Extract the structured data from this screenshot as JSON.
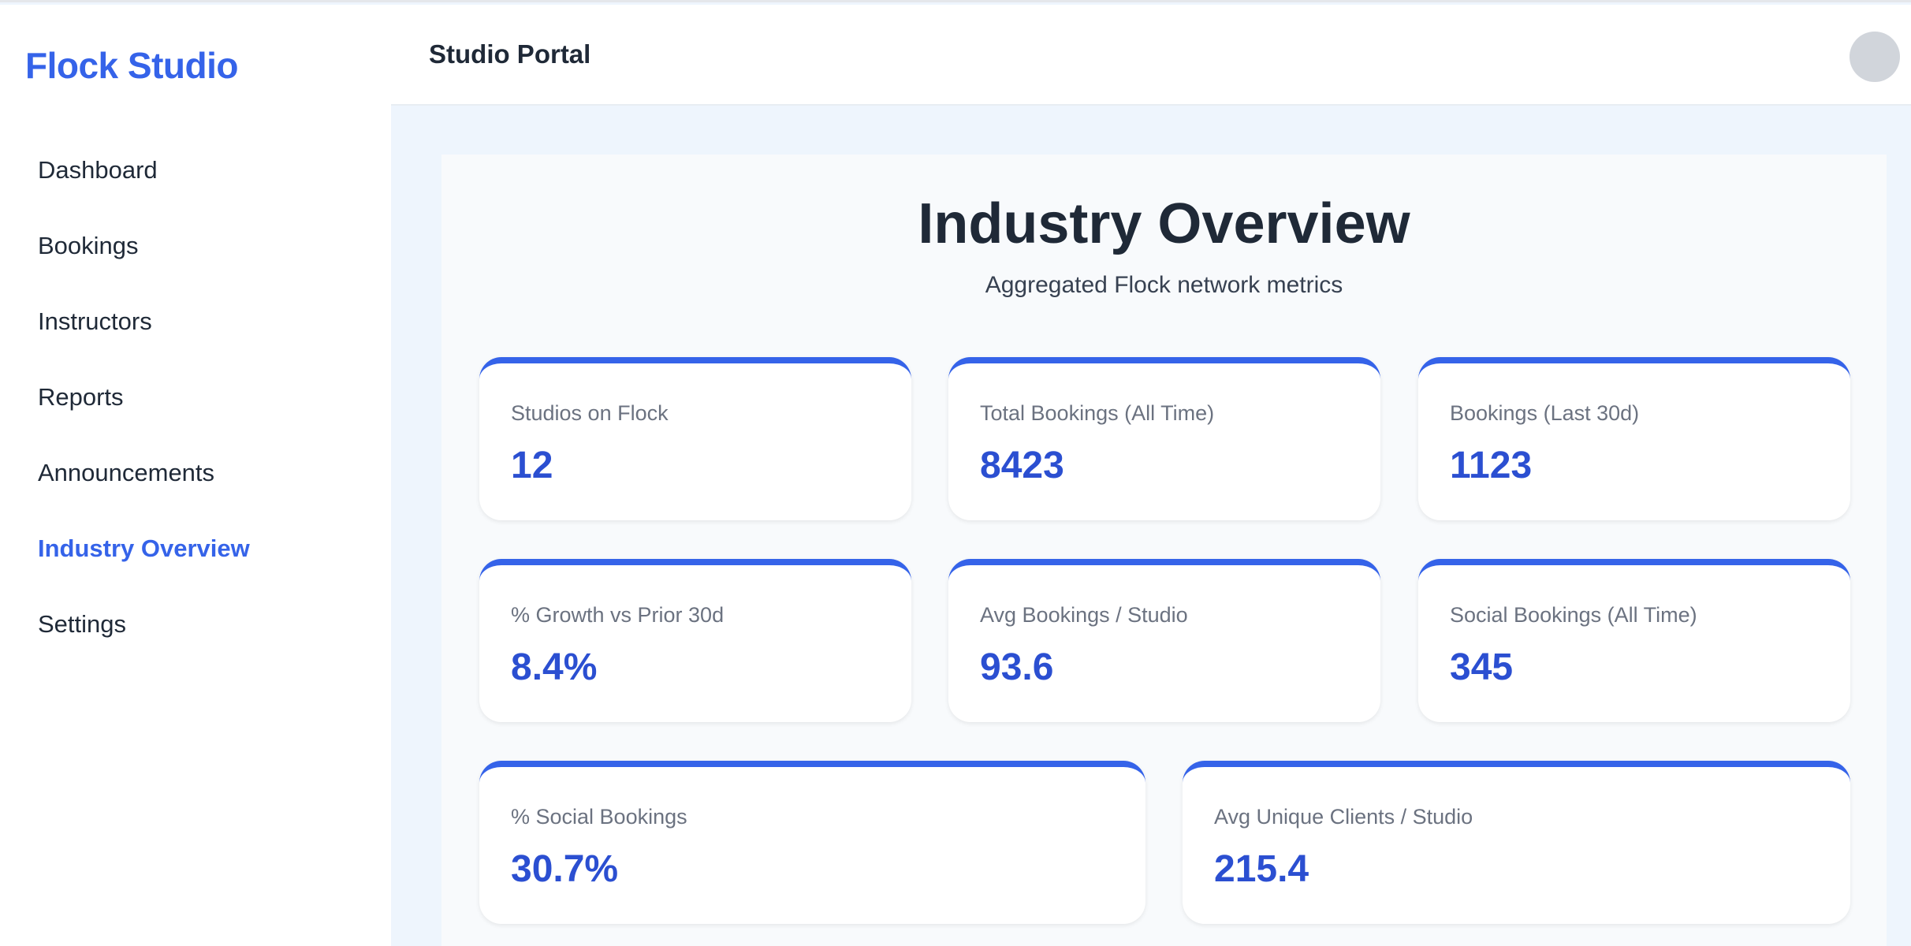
{
  "sidebar": {
    "logo": "Flock Studio",
    "items": [
      {
        "label": "Dashboard",
        "active": false
      },
      {
        "label": "Bookings",
        "active": false
      },
      {
        "label": "Instructors",
        "active": false
      },
      {
        "label": "Reports",
        "active": false
      },
      {
        "label": "Announcements",
        "active": false
      },
      {
        "label": "Industry Overview",
        "active": true
      },
      {
        "label": "Settings",
        "active": false
      }
    ]
  },
  "header": {
    "title": "Studio Portal",
    "avatar_icon": "user-avatar"
  },
  "main": {
    "title": "Industry Overview",
    "subtitle": "Aggregated Flock network metrics",
    "metrics": [
      {
        "label": "Studios on Flock",
        "value": "12"
      },
      {
        "label": "Total Bookings (All Time)",
        "value": "8423"
      },
      {
        "label": "Bookings (Last 30d)",
        "value": "1123"
      },
      {
        "label": "% Growth vs Prior 30d",
        "value": "8.4%"
      },
      {
        "label": "Avg Bookings / Studio",
        "value": "93.6"
      },
      {
        "label": "Social Bookings (All Time)",
        "value": "345"
      },
      {
        "label": "% Social Bookings",
        "value": "30.7%"
      },
      {
        "label": "Avg Unique Clients / Studio",
        "value": "215.4"
      }
    ]
  },
  "colors": {
    "accent": "#3563e9",
    "value": "#2b4fd1",
    "background": "#eef5fd"
  }
}
